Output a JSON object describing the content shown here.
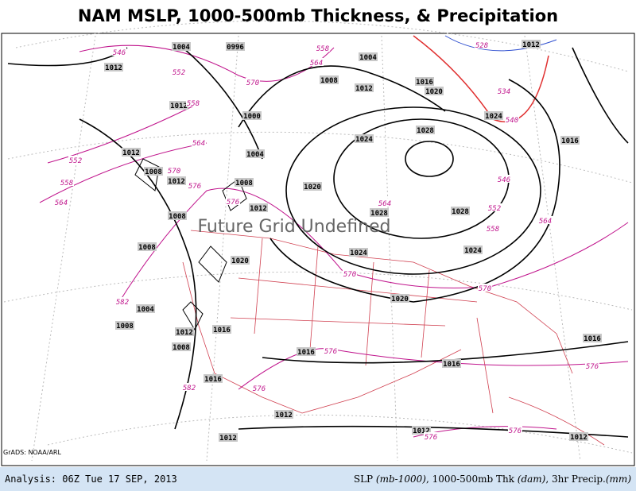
{
  "header": {
    "title": "NAM MSLP, 1000-500mb Thickness, & Precipitation"
  },
  "overlay": {
    "message": "Future Grid Undefined",
    "credit": "GrADS: NOAA/ARL"
  },
  "isobar_labels": [
    "1012",
    "1004",
    "0996",
    "1004",
    "1012",
    "1008",
    "1012",
    "1016",
    "1020",
    "1012",
    "1000",
    "1024",
    "1028",
    "1024",
    "1016",
    "1012",
    "1004",
    "1008",
    "1008",
    "1020",
    "1012",
    "1012",
    "1028",
    "1028",
    "1008",
    "1008",
    "1020",
    "1024",
    "1024",
    "1020",
    "1004",
    "1008",
    "1012",
    "1016",
    "1008",
    "1016",
    "1016",
    "1016",
    "1016",
    "1012",
    "1012",
    "1012",
    "1012"
  ],
  "thickness_labels": [
    "546",
    "552",
    "570",
    "564",
    "558",
    "528",
    "534",
    "540",
    "558",
    "564",
    "552",
    "558",
    "564",
    "570",
    "576",
    "576",
    "564",
    "546",
    "552",
    "558",
    "564",
    "570",
    "570",
    "582",
    "576",
    "576",
    "582",
    "576",
    "576",
    "576"
  ],
  "footer": {
    "analysis": "Analysis: 06Z Tue 17 SEP, 2013",
    "legend_parts": [
      "SLP ",
      "(mb-1000)",
      ", 1000-500mb Thk ",
      "(dam)",
      ", 3hr Precip.",
      "(mm)"
    ]
  }
}
